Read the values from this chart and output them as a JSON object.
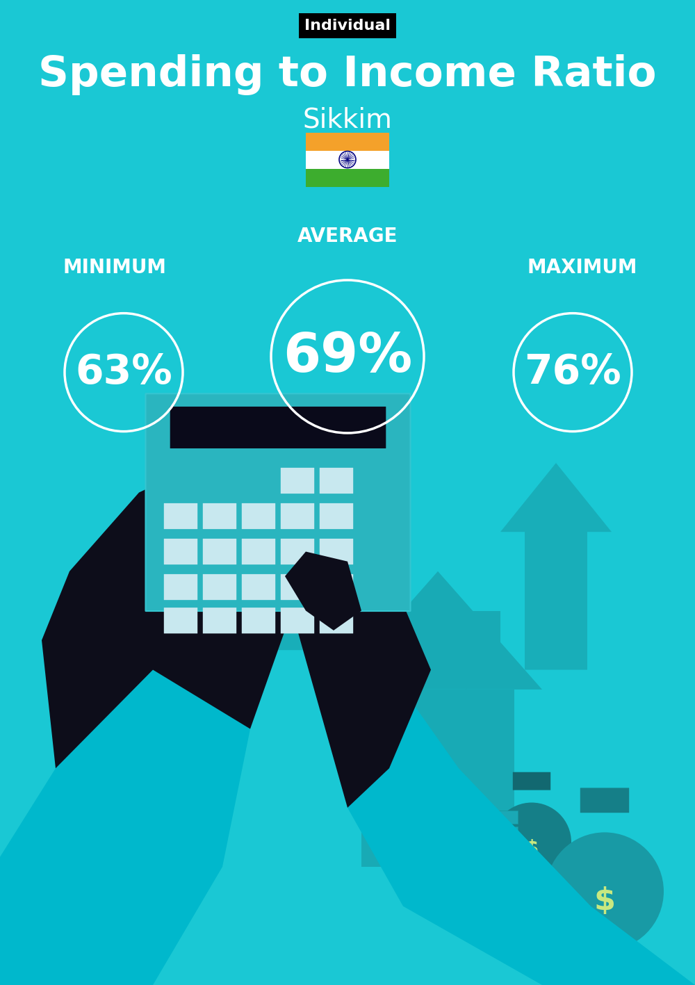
{
  "bg_color": "#1ac8d4",
  "title_main": "Spending to Income Ratio",
  "title_sub": "Sikkim",
  "tag_text": "Individual",
  "tag_bg": "#000000",
  "tag_text_color": "#ffffff",
  "label_min": "MINIMUM",
  "label_avg": "AVERAGE",
  "label_max": "MAXIMUM",
  "value_min": "63%",
  "value_avg": "69%",
  "value_max": "76%",
  "circle_color": "#ffffff",
  "text_color": "#ffffff",
  "title_fontsize": 44,
  "subtitle_fontsize": 28,
  "label_fontsize": 20,
  "value_fontsize_min": 42,
  "value_fontsize_avg": 56,
  "value_fontsize_max": 42,
  "tag_fontsize": 16,
  "flag_colors_top": "#F4A12A",
  "flag_colors_mid": "#FFFFFF",
  "flag_colors_bot": "#3DAD2E",
  "flag_wheel_color": "#000080",
  "calc_body_color": "#2ab5bf",
  "calc_display_color": "#0a0a1a",
  "calc_btn_color": "#c8e8ef",
  "hand_color": "#0d0d1a",
  "sleeve_color": "#00b8cc",
  "arrow_bg_color": "#18aab5",
  "house_color": "#18aab5",
  "money_color": "#18aab5",
  "money_sign_color": "#c8e880"
}
